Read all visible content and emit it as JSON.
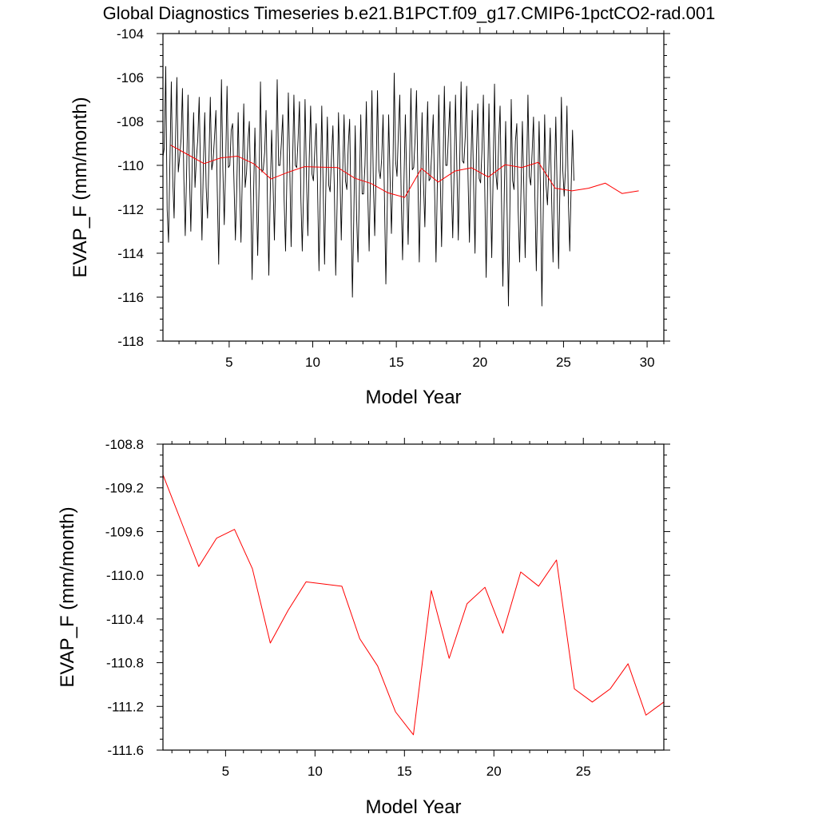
{
  "title": "Global Diagnostics Timeseries b.e21.B1PCT.f09_g17.CMIP6-1pctCO2-rad.001",
  "colors": {
    "monthly_line": "#000000",
    "annual_line": "#ff0000",
    "frame": "#000000",
    "background": "#ffffff"
  },
  "chart_data": [
    {
      "type": "line",
      "title": "Global Diagnostics Timeseries b.e21.B1PCT.f09_g17.CMIP6-1pctCO2-rad.001",
      "xlabel": "Model Year",
      "ylabel": "EVAP_F (mm/month)",
      "xlim": [
        1.04,
        31.0
      ],
      "ylim": [
        -118,
        -104
      ],
      "xticks": [
        5,
        10,
        15,
        20,
        25,
        30
      ],
      "yticks": [
        -118,
        -116,
        -114,
        -112,
        -110,
        -108,
        -106,
        -104
      ],
      "ytick_labels": [
        "-118",
        "-116",
        "-114",
        "-112",
        "-110",
        "-108",
        "-106",
        "-104"
      ],
      "grid": false,
      "series": [
        {
          "kind": "monthly",
          "color": "#000000",
          "x_start": 1.04,
          "x_step": 0.08333,
          "values": [
            -109.6,
            -109.2,
            -105.5,
            -112.0,
            -113.5,
            -109.8,
            -106.2,
            -110.6,
            -112.4,
            -108.9,
            -106.0,
            -110.3,
            -109.6,
            -108.8,
            -106.5,
            -110.6,
            -113.2,
            -110.2,
            -106.8,
            -110.4,
            -113.0,
            -109.9,
            -107.6,
            -111.0,
            -109.7,
            -108.8,
            -106.9,
            -110.5,
            -113.4,
            -110.0,
            -107.6,
            -111.0,
            -112.4,
            -109.8,
            -106.9,
            -110.2,
            -109.8,
            -108.7,
            -107.5,
            -111.2,
            -114.5,
            -110.4,
            -106.1,
            -110.2,
            -112.7,
            -110.0,
            -106.4,
            -110.1,
            -110.0,
            -108.4,
            -108.1,
            -110.8,
            -113.4,
            -111.0,
            -107.6,
            -110.9,
            -113.5,
            -110.4,
            -107.2,
            -111.0,
            -110.3,
            -108.9,
            -108.0,
            -111.4,
            -115.2,
            -111.5,
            -108.3,
            -111.1,
            -114.1,
            -110.9,
            -106.2,
            -110.3,
            -110.2,
            -109.4,
            -107.5,
            -111.6,
            -115.0,
            -111.3,
            -108.4,
            -110.8,
            -113.4,
            -110.1,
            -106.1,
            -110.0,
            -110.0,
            -109.0,
            -107.7,
            -111.6,
            -113.9,
            -110.4,
            -106.7,
            -110.0,
            -113.7,
            -110.1,
            -106.8,
            -110.0,
            -110.1,
            -108.8,
            -107.1,
            -111.5,
            -113.9,
            -111.0,
            -107.0,
            -110.5,
            -113.2,
            -109.7,
            -107.3,
            -110.4,
            -110.7,
            -109.3,
            -108.1,
            -111.1,
            -114.8,
            -111.1,
            -107.3,
            -111.0,
            -114.5,
            -110.8,
            -107.8,
            -110.9,
            -111.2,
            -109.6,
            -108.2,
            -111.0,
            -115.0,
            -111.8,
            -107.6,
            -110.2,
            -113.4,
            -110.3,
            -107.7,
            -110.7,
            -111.1,
            -109.1,
            -107.9,
            -112.0,
            -116.0,
            -112.3,
            -108.2,
            -112.3,
            -114.4,
            -111.1,
            -107.7,
            -111.3,
            -111.3,
            -110.0,
            -107.1,
            -111.2,
            -113.9,
            -110.4,
            -106.6,
            -110.7,
            -113.2,
            -110.3,
            -106.6,
            -110.2,
            -110.6,
            -109.7,
            -107.7,
            -111.5,
            -115.4,
            -112.0,
            -107.7,
            -110.5,
            -113.1,
            -110.5,
            -105.8,
            -109.8,
            -110.5,
            -108.5,
            -106.8,
            -111.4,
            -114.3,
            -110.7,
            -107.7,
            -110.8,
            -113.6,
            -110.0,
            -106.5,
            -110.2,
            -110.1,
            -108.8,
            -106.6,
            -110.6,
            -114.4,
            -110.8,
            -107.6,
            -110.8,
            -112.8,
            -109.6,
            -107.1,
            -110.7,
            -110.6,
            -109.3,
            -107.7,
            -111.2,
            -114.4,
            -110.7,
            -106.8,
            -110.4,
            -113.7,
            -110.3,
            -106.4,
            -110.0,
            -110.0,
            -108.5,
            -107.1,
            -110.8,
            -113.3,
            -110.3,
            -106.8,
            -110.2,
            -113.4,
            -109.9,
            -106.2,
            -109.8,
            -109.9,
            -108.7,
            -106.4,
            -110.6,
            -113.5,
            -110.0,
            -107.5,
            -110.9,
            -114.0,
            -109.5,
            -107.2,
            -110.6,
            -110.8,
            -109.3,
            -106.8,
            -111.1,
            -115.1,
            -111.1,
            -107.2,
            -110.9,
            -114.2,
            -110.5,
            -106.3,
            -110.4,
            -111.1,
            -108.9,
            -107.3,
            -111.5,
            -115.5,
            -111.3,
            -108.0,
            -112.0,
            -116.4,
            -112.1,
            -107.0,
            -110.7,
            -111.1,
            -108.9,
            -108.1,
            -112.1,
            -114.4,
            -111.2,
            -108.0,
            -110.9,
            -114.2,
            -110.5,
            -106.8,
            -110.5,
            -110.9,
            -109.4,
            -107.8,
            -111.5,
            -114.8,
            -111.2,
            -108.0,
            -111.2,
            -116.4,
            -112.0,
            -107.7,
            -110.9,
            -111.8,
            -110.1,
            -108.3,
            -111.5,
            -114.4,
            -110.7,
            -107.8,
            -111.3,
            -114.7,
            -110.8,
            -106.9,
            -110.2,
            -111.4,
            -110.1,
            -107.3,
            -111.6,
            -113.9,
            -111.0,
            -108.4,
            -110.7
          ]
        },
        {
          "kind": "annual",
          "color": "#ff0000",
          "x": [
            1.5,
            2.5,
            3.5,
            4.5,
            5.5,
            6.5,
            7.5,
            8.5,
            9.5,
            10.5,
            11.5,
            12.5,
            13.5,
            14.5,
            15.5,
            16.5,
            17.5,
            18.5,
            19.5,
            20.5,
            21.5,
            22.5,
            23.5,
            24.5,
            25.5,
            26.5,
            27.5,
            28.5,
            29.5
          ],
          "values": [
            -109.08,
            -109.5,
            -109.92,
            -109.66,
            -109.58,
            -109.94,
            -110.62,
            -110.32,
            -110.06,
            -110.08,
            -110.1,
            -110.58,
            -110.83,
            -111.25,
            -111.46,
            -110.14,
            -110.76,
            -110.26,
            -110.11,
            -110.53,
            -109.97,
            -110.1,
            -109.86,
            -111.04,
            -111.16,
            -111.04,
            -110.81,
            -111.28,
            -111.16
          ]
        }
      ]
    },
    {
      "type": "line",
      "xlabel": "Model Year",
      "ylabel": "EVAP_F (mm/month)",
      "xlim": [
        1.5,
        29.5
      ],
      "ylim": [
        -111.6,
        -108.8
      ],
      "xticks": [
        5,
        10,
        15,
        20,
        25
      ],
      "yticks": [
        -111.6,
        -111.2,
        -110.8,
        -110.4,
        -110.0,
        -109.6,
        -109.2,
        -108.8
      ],
      "ytick_labels": [
        "-111.6",
        "-111.2",
        "-110.8",
        "-110.4",
        "-110.0",
        "-109.6",
        "-109.2",
        "-108.8"
      ],
      "grid": false,
      "series": [
        {
          "kind": "annual",
          "color": "#ff0000",
          "x": [
            1.5,
            2.5,
            3.5,
            4.5,
            5.5,
            6.5,
            7.5,
            8.5,
            9.5,
            10.5,
            11.5,
            12.5,
            13.5,
            14.5,
            15.5,
            16.5,
            17.5,
            18.5,
            19.5,
            20.5,
            21.5,
            22.5,
            23.5,
            24.5,
            25.5,
            26.5,
            27.5,
            28.5,
            29.5
          ],
          "values": [
            -109.08,
            -109.5,
            -109.92,
            -109.66,
            -109.58,
            -109.94,
            -110.62,
            -110.32,
            -110.06,
            -110.08,
            -110.1,
            -110.58,
            -110.83,
            -111.25,
            -111.46,
            -110.14,
            -110.76,
            -110.26,
            -110.11,
            -110.53,
            -109.97,
            -110.1,
            -109.86,
            -111.04,
            -111.16,
            -111.04,
            -110.81,
            -111.28,
            -111.16
          ]
        }
      ]
    }
  ]
}
